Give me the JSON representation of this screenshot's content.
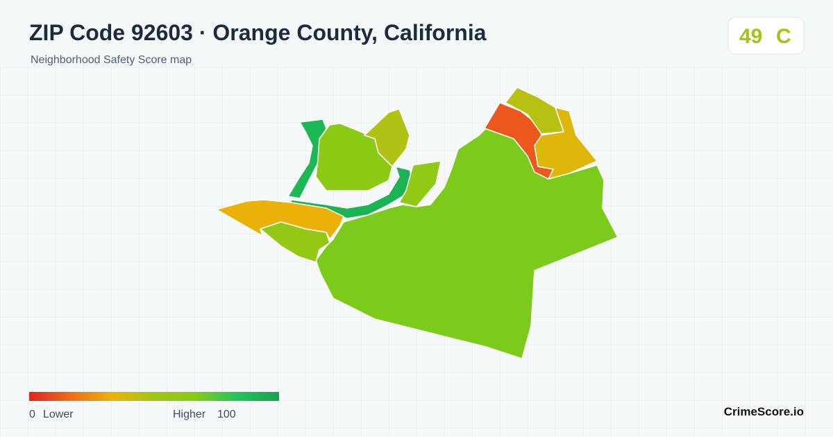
{
  "header": {
    "title": "ZIP Code 92603 · Orange County, California",
    "subtitle": "Neighborhood Safety Score map"
  },
  "score": {
    "value": 49,
    "grade": "C"
  },
  "map": {
    "regions": [
      68,
      92,
      90,
      62,
      47,
      60,
      33,
      58,
      12,
      45,
      36
    ]
  },
  "legend": {
    "min": 0,
    "min_label": "Lower",
    "max_label": "Higher",
    "max": 100,
    "colors": [
      "#dc2626",
      "#ef6c1a",
      "#eab308",
      "#a3c516",
      "#84cc16",
      "#22c55e",
      "#16a34a"
    ]
  },
  "brand": "CrimeScore.io"
}
